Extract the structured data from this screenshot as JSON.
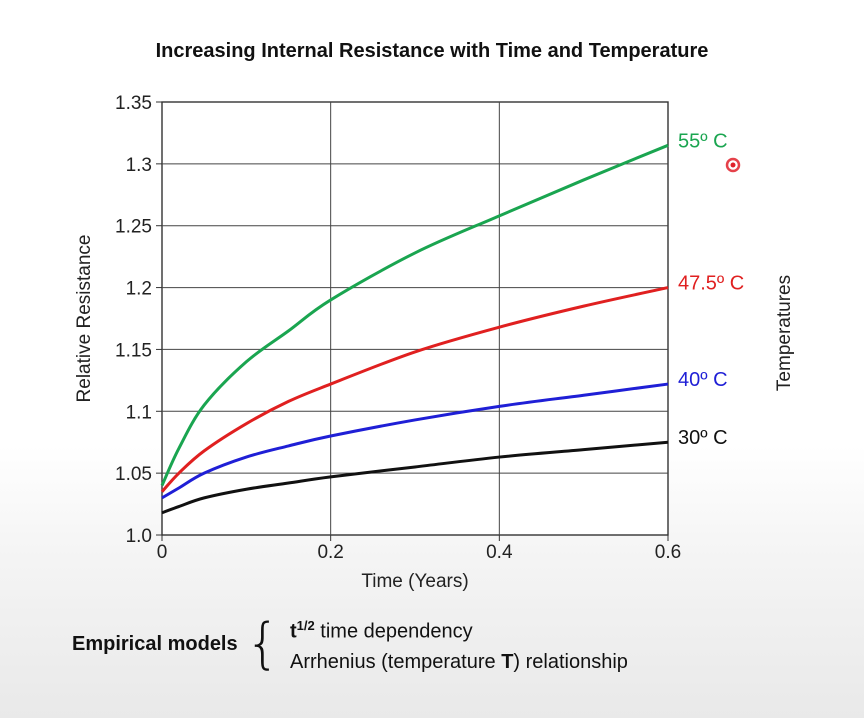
{
  "chart_data": {
    "type": "line",
    "title": "Increasing Internal Resistance with Time and Temperature",
    "xlabel": "Time (Years)",
    "ylabel": "Relative Resistance",
    "right_label": "Temperatures",
    "xlim": [
      0,
      0.6
    ],
    "ylim": [
      1.0,
      1.35
    ],
    "xticks": [
      "0",
      "0.2",
      "0.4",
      "0.6"
    ],
    "yticks": [
      "1.0",
      "1.05",
      "1.1",
      "1.15",
      "1.2",
      "1.25",
      "1.3",
      "1.35"
    ],
    "grid": true,
    "series": [
      {
        "name": "55º C",
        "color": "#1aa550",
        "x": [
          0,
          0.02,
          0.05,
          0.1,
          0.15,
          0.2,
          0.3,
          0.4,
          0.5,
          0.6
        ],
        "y": [
          1.04,
          1.07,
          1.105,
          1.14,
          1.165,
          1.19,
          1.228,
          1.258,
          1.287,
          1.315
        ]
      },
      {
        "name": "47.5º C",
        "color": "#e02020",
        "x": [
          0,
          0.02,
          0.05,
          0.1,
          0.15,
          0.2,
          0.3,
          0.4,
          0.5,
          0.6
        ],
        "y": [
          1.035,
          1.05,
          1.068,
          1.09,
          1.108,
          1.122,
          1.148,
          1.168,
          1.185,
          1.2
        ]
      },
      {
        "name": "40º C",
        "color": "#1f1fd6",
        "x": [
          0,
          0.02,
          0.05,
          0.1,
          0.15,
          0.2,
          0.3,
          0.4,
          0.5,
          0.6
        ],
        "y": [
          1.03,
          1.038,
          1.05,
          1.063,
          1.072,
          1.08,
          1.093,
          1.104,
          1.113,
          1.122
        ]
      },
      {
        "name": "30º C",
        "color": "#111111",
        "x": [
          0,
          0.02,
          0.05,
          0.1,
          0.15,
          0.2,
          0.3,
          0.4,
          0.5,
          0.6
        ],
        "y": [
          1.018,
          1.023,
          1.03,
          1.037,
          1.042,
          1.047,
          1.055,
          1.063,
          1.069,
          1.075
        ]
      }
    ]
  },
  "footer": {
    "label": "Empirical models",
    "line1_t": "t",
    "line1_sup": "1/2",
    "line1_rest": " time dependency",
    "line2_start": "Arrhenius  (temperature ",
    "line2_bold": "T",
    "line2_end": ") relationship"
  },
  "cursor_color": "#e0202a"
}
